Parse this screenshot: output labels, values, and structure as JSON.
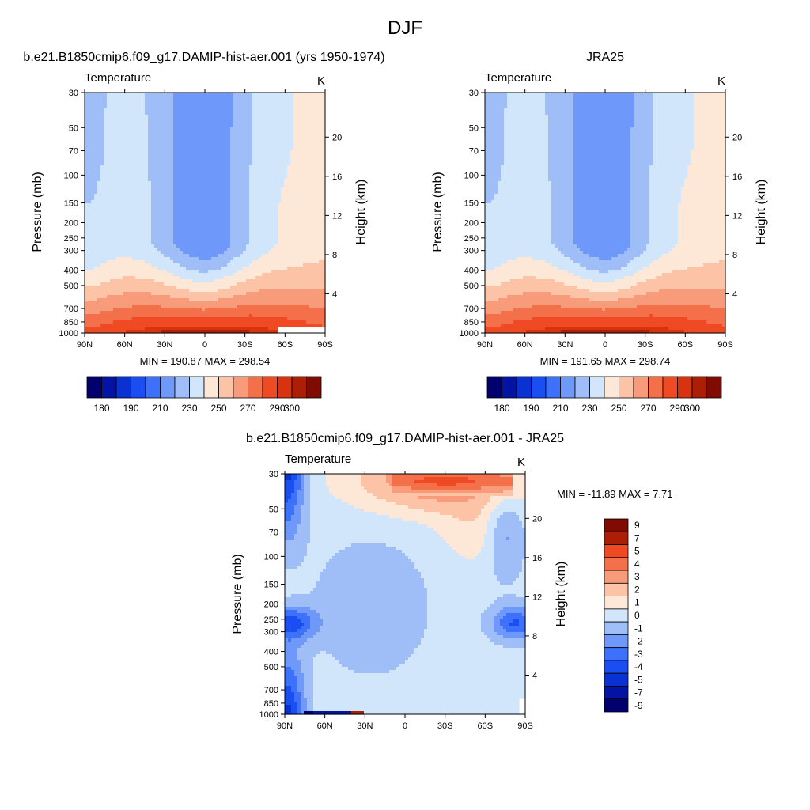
{
  "figure": {
    "title": "DJF"
  },
  "colors": {
    "abs_levels": [
      "#02006e",
      "#0313a4",
      "#0a32d2",
      "#1b4ef2",
      "#3d70fb",
      "#6e98f9",
      "#9fbef7",
      "#d2e6fb",
      "#fde7d7",
      "#fcc3a7",
      "#f89b7a",
      "#f3704b",
      "#ef4a23",
      "#d9320f",
      "#ab1f06",
      "#7f0b02"
    ],
    "diff_levels": [
      "#02006e",
      "#0313a4",
      "#0a32d2",
      "#1b4ef2",
      "#3d70fb",
      "#6e98f9",
      "#9fbef7",
      "#d2e6fb",
      "#fde7d7",
      "#fcc3a7",
      "#f89b7a",
      "#f3704b",
      "#ef4a23",
      "#ab1f06",
      "#7f0b02"
    ]
  },
  "chart_data": [
    {
      "type": "heatmap",
      "title": "b.e21.B1850cmip6.f09_g17.DAMIP-hist-aer.001 (yrs 1950-1974)",
      "left_label": "Temperature",
      "right_label": "K",
      "ylabel": "Pressure (mb)",
      "y2label": "Height (km)",
      "x_ticks": [
        "90N",
        "60N",
        "30N",
        "0",
        "30S",
        "60S",
        "90S"
      ],
      "y_ticks": [
        "30",
        "50",
        "70",
        "100",
        "150",
        "200",
        "250",
        "300",
        "400",
        "500",
        "700",
        "850",
        "1000"
      ],
      "y_tick_values": [
        30,
        50,
        70,
        100,
        150,
        200,
        250,
        300,
        400,
        500,
        700,
        850,
        1000
      ],
      "y2_ticks": [
        "20",
        "16",
        "12",
        "8",
        "4"
      ],
      "y2_tick_values": [
        20,
        16,
        12,
        8,
        4
      ],
      "ylim": [
        1000,
        30
      ],
      "xlim": [
        90,
        -90
      ],
      "stats": "MIN = 190.87  MAX = 298.54",
      "colorbar_labels": [
        "180",
        "190",
        "210",
        "230",
        "250",
        "270",
        "290",
        "300"
      ],
      "field": "abs",
      "variant": "model",
      "min": 190.87,
      "max": 298.54
    },
    {
      "type": "heatmap",
      "title": "JRA25",
      "left_label": "Temperature",
      "right_label": "K",
      "ylabel": "Pressure (mb)",
      "y2label": "Height (km)",
      "x_ticks": [
        "90N",
        "60N",
        "30N",
        "0",
        "30S",
        "60S",
        "90S"
      ],
      "y_ticks": [
        "30",
        "50",
        "70",
        "100",
        "150",
        "200",
        "250",
        "300",
        "400",
        "500",
        "700",
        "850",
        "1000"
      ],
      "y_tick_values": [
        30,
        50,
        70,
        100,
        150,
        200,
        250,
        300,
        400,
        500,
        700,
        850,
        1000
      ],
      "y2_ticks": [
        "20",
        "16",
        "12",
        "8",
        "4"
      ],
      "y2_tick_values": [
        20,
        16,
        12,
        8,
        4
      ],
      "ylim": [
        1000,
        30
      ],
      "xlim": [
        90,
        -90
      ],
      "stats": "MIN = 191.65  MAX = 298.74",
      "colorbar_labels": [
        "180",
        "190",
        "210",
        "230",
        "250",
        "270",
        "290",
        "300"
      ],
      "field": "abs",
      "variant": "obs",
      "min": 191.65,
      "max": 298.74
    },
    {
      "type": "heatmap",
      "title": "b.e21.B1850cmip6.f09_g17.DAMIP-hist-aer.001 - JRA25",
      "left_label": "Temperature",
      "right_label": "K",
      "ylabel": "Pressure (mb)",
      "y2label": "Height (km)",
      "x_ticks": [
        "90N",
        "60N",
        "30N",
        "0",
        "30S",
        "60S",
        "90S"
      ],
      "y_ticks": [
        "30",
        "50",
        "70",
        "100",
        "150",
        "200",
        "250",
        "300",
        "400",
        "500",
        "700",
        "850",
        "1000"
      ],
      "y_tick_values": [
        30,
        50,
        70,
        100,
        150,
        200,
        250,
        300,
        400,
        500,
        700,
        850,
        1000
      ],
      "y2_ticks": [
        "20",
        "16",
        "12",
        "8",
        "4"
      ],
      "y2_tick_values": [
        20,
        16,
        12,
        8,
        4
      ],
      "ylim": [
        1000,
        30
      ],
      "xlim": [
        90,
        -90
      ],
      "stats": "MIN = -11.89  MAX =   7.71",
      "colorbar_labels": [
        "9",
        "7",
        "5",
        "4",
        "3",
        "2",
        "1",
        "0",
        "-1",
        "-2",
        "-3",
        "-4",
        "-5",
        "-7",
        "-9"
      ],
      "field": "diff",
      "min": -11.89,
      "max": 7.71
    }
  ]
}
